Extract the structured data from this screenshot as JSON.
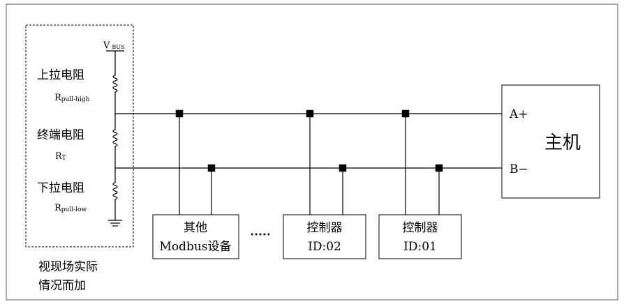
{
  "resistor_panel": {
    "vbus_label": "V",
    "vbus_sub": "BUS",
    "pullup_name": "上拉电阻",
    "pullup_symbol": "R",
    "pullup_sub": "pull-high",
    "terminal_name": "终端电阻",
    "terminal_symbol": "R",
    "terminal_sub": "T",
    "pulldown_name": "下拉电阻",
    "pulldown_symbol": "R",
    "pulldown_sub": "pull-low",
    "note_line1": "视现场实际",
    "note_line2": "情况而加"
  },
  "host": {
    "title": "主机",
    "line_a": "A+",
    "line_b": "B−"
  },
  "devices": {
    "other_line1": "其他",
    "other_line2": "Modbus设备",
    "ellipsis": "•••••",
    "controller2_line1": "控制器",
    "controller2_line2": "ID:02",
    "controller1_line1": "控制器",
    "controller1_line2": "ID:01"
  }
}
